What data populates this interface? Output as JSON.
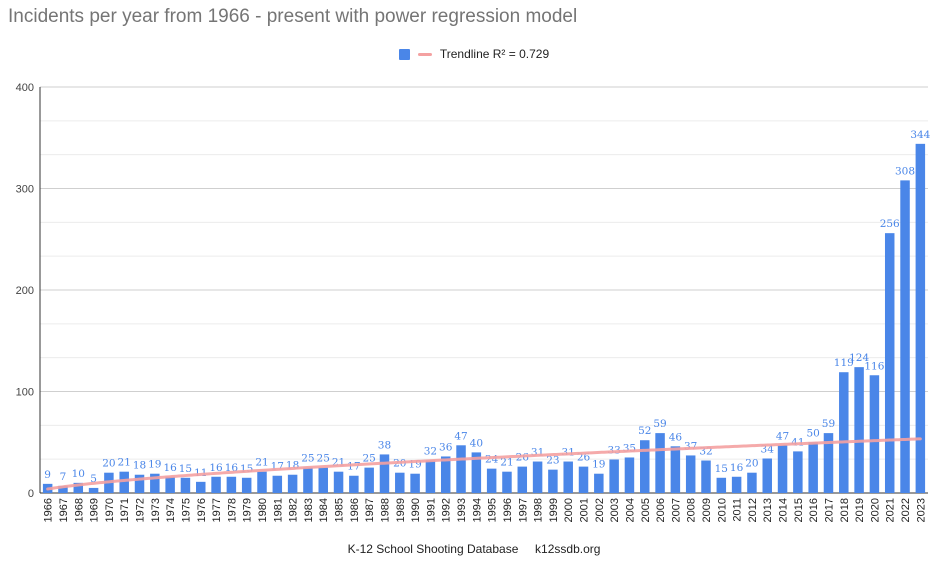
{
  "chart_data": {
    "type": "bar",
    "title": "Incidents per year from 1966 - present with power regression model",
    "categories": [
      "1966",
      "1967",
      "1968",
      "1969",
      "1970",
      "1971",
      "1972",
      "1973",
      "1974",
      "1975",
      "1976",
      "1977",
      "1978",
      "1979",
      "1980",
      "1981",
      "1982",
      "1983",
      "1984",
      "1985",
      "1986",
      "1987",
      "1988",
      "1989",
      "1990",
      "1991",
      "1992",
      "1993",
      "1994",
      "1995",
      "1996",
      "1997",
      "1998",
      "1999",
      "2000",
      "2001",
      "2002",
      "2003",
      "2004",
      "2005",
      "2006",
      "2007",
      "2008",
      "2009",
      "2010",
      "2011",
      "2012",
      "2013",
      "2014",
      "2015",
      "2016",
      "2017",
      "2018",
      "2019",
      "2020",
      "2021",
      "2022",
      "2023"
    ],
    "series": [
      {
        "name": "",
        "color": "#4a86e8",
        "values": [
          9,
          7,
          10,
          5,
          20,
          21,
          18,
          19,
          16,
          15,
          11,
          16,
          16,
          15,
          21,
          17,
          18,
          25,
          25,
          21,
          17,
          25,
          38,
          20,
          19,
          32,
          36,
          47,
          40,
          24,
          21,
          26,
          31,
          23,
          31,
          26,
          19,
          33,
          35,
          52,
          59,
          46,
          37,
          32,
          15,
          16,
          20,
          34,
          47,
          41,
          50,
          59,
          119,
          124,
          116,
          256,
          308,
          344
        ]
      }
    ],
    "trendline": {
      "name": "Trendline R² = 0.729",
      "color": "#f4a1a1"
    },
    "ylim": [
      0,
      400
    ],
    "yticks": [
      0,
      100,
      200,
      300,
      400
    ],
    "xlabel": "",
    "ylabel": "",
    "grid": true,
    "legend_position": "top-center"
  },
  "footer": {
    "source": "K-12 School Shooting Database",
    "site": "k12ssdb.org"
  }
}
